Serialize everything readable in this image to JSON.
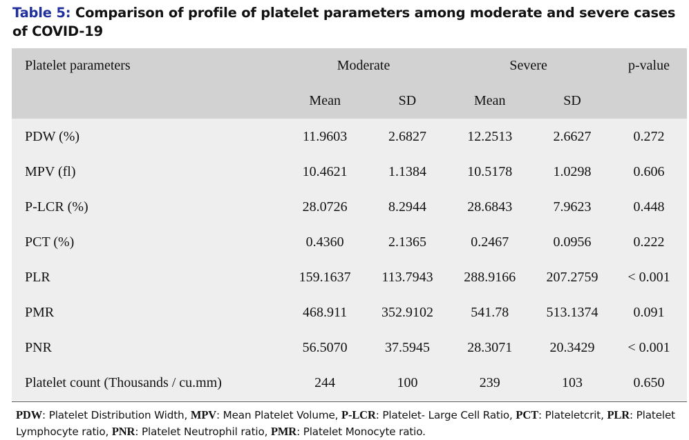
{
  "caption": {
    "label": "Table 5:",
    "text": " Comparison of profile of platelet parameters among moderate and severe cases of COVID-19"
  },
  "header": {
    "param_col": "Platelet parameters",
    "moderate": "Moderate",
    "severe": "Severe",
    "pvalue": "p-value",
    "mod_mean": "Mean",
    "mod_sd": "SD",
    "sev_mean": "Mean",
    "sev_sd": "SD"
  },
  "rows": [
    {
      "param": "PDW (%)",
      "mod_mean": "11.9603",
      "mod_sd": "2.6827",
      "sev_mean": "12.2513",
      "sev_sd": "2.6627",
      "p": "0.272"
    },
    {
      "param": "MPV (fl)",
      "mod_mean": "10.4621",
      "mod_sd": "1.1384",
      "sev_mean": "10.5178",
      "sev_sd": "1.0298",
      "p": "0.606"
    },
    {
      "param": "P-LCR (%)",
      "mod_mean": "28.0726",
      "mod_sd": "8.2944",
      "sev_mean": "28.6843",
      "sev_sd": "7.9623",
      "p": "0.448"
    },
    {
      "param": "PCT (%)",
      "mod_mean": "0.4360",
      "mod_sd": "2.1365",
      "sev_mean": "0.2467",
      "sev_sd": "0.0956",
      "p": "0.222"
    },
    {
      "param": "PLR",
      "mod_mean": "159.1637",
      "mod_sd": "113.7943",
      "sev_mean": "288.9166",
      "sev_sd": "207.2759",
      "p": "< 0.001"
    },
    {
      "param": "PMR",
      "mod_mean": "468.911",
      "mod_sd": "352.9102",
      "sev_mean": "541.78",
      "sev_sd": "513.1374",
      "p": "0.091"
    },
    {
      "param": "PNR",
      "mod_mean": "56.5070",
      "mod_sd": "37.5945",
      "sev_mean": "28.3071",
      "sev_sd": "20.3429",
      "p": "< 0.001"
    },
    {
      "param": "Platelet count (Thousands / cu.mm)",
      "mod_mean": "244",
      "mod_sd": "100",
      "sev_mean": "239",
      "sev_sd": "103",
      "p": "0.650"
    }
  ],
  "footnote": [
    {
      "abbr": "PDW",
      "def": ": Platelet Distribution Width, "
    },
    {
      "abbr": "MPV",
      "def": ": Mean Platelet Volume, "
    },
    {
      "abbr": "P-LCR",
      "def": ": Platelet- Large Cell Ratio, "
    },
    {
      "abbr": "PCT",
      "def": ": Plateletcrit, "
    },
    {
      "abbr": "PLR",
      "def": ": Platelet Lymphocyte ratio, "
    },
    {
      "abbr": "PNR",
      "def": ": Platelet Neutrophil ratio, "
    },
    {
      "abbr": "PMR",
      "def": ": Platelet Monocyte ratio."
    }
  ]
}
